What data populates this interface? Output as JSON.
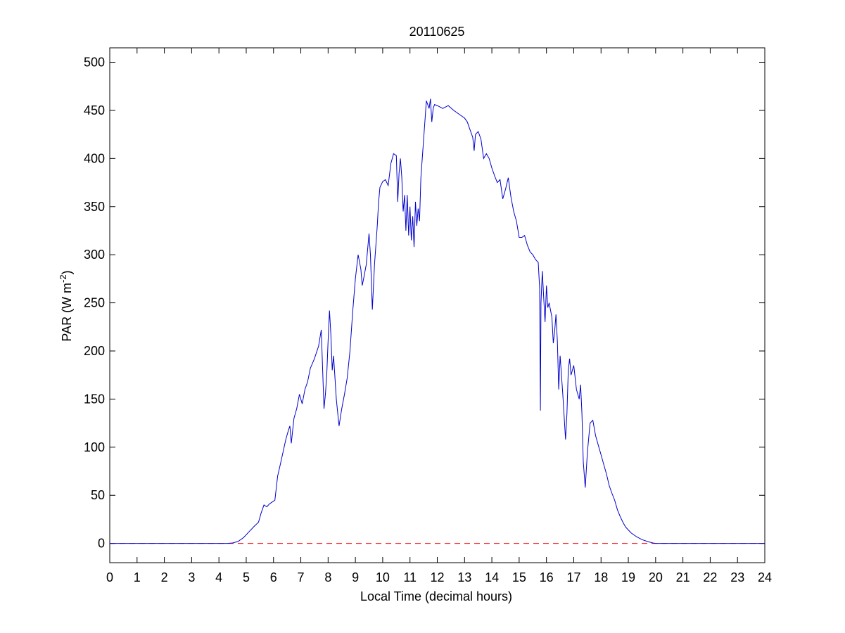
{
  "chart_data": {
    "type": "line",
    "title": "20110625",
    "xlabel": "Local Time (decimal hours)",
    "ylabel_main": "PAR (W m",
    "ylabel_sup": "-2",
    "ylabel_end": ")",
    "xlim": [
      0,
      24
    ],
    "ylim": [
      -20,
      515
    ],
    "x_ticks": [
      0,
      1,
      2,
      3,
      4,
      5,
      6,
      7,
      8,
      9,
      10,
      11,
      12,
      13,
      14,
      15,
      16,
      17,
      18,
      19,
      20,
      21,
      22,
      23,
      24
    ],
    "y_ticks": [
      0,
      50,
      100,
      150,
      200,
      250,
      300,
      350,
      400,
      450,
      500
    ],
    "grid": false,
    "colors": {
      "series": "#0000cc",
      "reference": "#ff0000"
    },
    "series": [
      {
        "points": [
          [
            0,
            0
          ],
          [
            4.3,
            0
          ],
          [
            4.5,
            0.5
          ],
          [
            4.7,
            2
          ],
          [
            4.9,
            6
          ],
          [
            5.1,
            12
          ],
          [
            5.3,
            18
          ],
          [
            5.45,
            22
          ],
          [
            5.55,
            32
          ],
          [
            5.65,
            40
          ],
          [
            5.75,
            38
          ],
          [
            5.85,
            41
          ],
          [
            5.95,
            43
          ],
          [
            6.05,
            45
          ],
          [
            6.15,
            70
          ],
          [
            6.25,
            82
          ],
          [
            6.35,
            95
          ],
          [
            6.45,
            108
          ],
          [
            6.55,
            118
          ],
          [
            6.6,
            122
          ],
          [
            6.65,
            104
          ],
          [
            6.75,
            130
          ],
          [
            6.85,
            140
          ],
          [
            6.95,
            155
          ],
          [
            7.05,
            145
          ],
          [
            7.15,
            160
          ],
          [
            7.25,
            168
          ],
          [
            7.35,
            182
          ],
          [
            7.5,
            192
          ],
          [
            7.65,
            205
          ],
          [
            7.75,
            222
          ],
          [
            7.8,
            180
          ],
          [
            7.85,
            140
          ],
          [
            7.9,
            155
          ],
          [
            7.95,
            175
          ],
          [
            8.0,
            210
          ],
          [
            8.05,
            242
          ],
          [
            8.1,
            218
          ],
          [
            8.15,
            180
          ],
          [
            8.2,
            195
          ],
          [
            8.3,
            150
          ],
          [
            8.4,
            122
          ],
          [
            8.5,
            140
          ],
          [
            8.6,
            155
          ],
          [
            8.7,
            172
          ],
          [
            8.8,
            200
          ],
          [
            8.9,
            240
          ],
          [
            9.0,
            275
          ],
          [
            9.1,
            300
          ],
          [
            9.2,
            285
          ],
          [
            9.25,
            268
          ],
          [
            9.3,
            275
          ],
          [
            9.4,
            290
          ],
          [
            9.5,
            322
          ],
          [
            9.55,
            300
          ],
          [
            9.6,
            260
          ],
          [
            9.62,
            243
          ],
          [
            9.7,
            290
          ],
          [
            9.8,
            330
          ],
          [
            9.85,
            355
          ],
          [
            9.9,
            370
          ],
          [
            10.0,
            376
          ],
          [
            10.1,
            378
          ],
          [
            10.2,
            372
          ],
          [
            10.3,
            395
          ],
          [
            10.4,
            405
          ],
          [
            10.5,
            403
          ],
          [
            10.55,
            355
          ],
          [
            10.6,
            385
          ],
          [
            10.65,
            400
          ],
          [
            10.7,
            380
          ],
          [
            10.75,
            345
          ],
          [
            10.8,
            362
          ],
          [
            10.85,
            325
          ],
          [
            10.9,
            362
          ],
          [
            10.95,
            320
          ],
          [
            11.0,
            350
          ],
          [
            11.05,
            315
          ],
          [
            11.1,
            340
          ],
          [
            11.15,
            308
          ],
          [
            11.2,
            355
          ],
          [
            11.25,
            330
          ],
          [
            11.3,
            348
          ],
          [
            11.35,
            335
          ],
          [
            11.4,
            380
          ],
          [
            11.5,
            420
          ],
          [
            11.6,
            460
          ],
          [
            11.7,
            452
          ],
          [
            11.75,
            462
          ],
          [
            11.8,
            438
          ],
          [
            11.85,
            452
          ],
          [
            11.9,
            456
          ],
          [
            12.0,
            455
          ],
          [
            12.2,
            452
          ],
          [
            12.4,
            455
          ],
          [
            12.6,
            450
          ],
          [
            12.8,
            446
          ],
          [
            13.0,
            442
          ],
          [
            13.1,
            438
          ],
          [
            13.2,
            430
          ],
          [
            13.3,
            422
          ],
          [
            13.35,
            408
          ],
          [
            13.4,
            425
          ],
          [
            13.5,
            428
          ],
          [
            13.6,
            420
          ],
          [
            13.7,
            400
          ],
          [
            13.8,
            405
          ],
          [
            13.9,
            400
          ],
          [
            14.0,
            390
          ],
          [
            14.1,
            382
          ],
          [
            14.2,
            375
          ],
          [
            14.3,
            378
          ],
          [
            14.4,
            358
          ],
          [
            14.5,
            368
          ],
          [
            14.6,
            380
          ],
          [
            14.7,
            360
          ],
          [
            14.8,
            345
          ],
          [
            14.9,
            335
          ],
          [
            15.0,
            318
          ],
          [
            15.1,
            318
          ],
          [
            15.2,
            320
          ],
          [
            15.3,
            310
          ],
          [
            15.4,
            303
          ],
          [
            15.5,
            300
          ],
          [
            15.6,
            295
          ],
          [
            15.7,
            292
          ],
          [
            15.75,
            265
          ],
          [
            15.78,
            138
          ],
          [
            15.8,
            250
          ],
          [
            15.85,
            283
          ],
          [
            15.9,
            255
          ],
          [
            15.95,
            230
          ],
          [
            16.0,
            268
          ],
          [
            16.05,
            245
          ],
          [
            16.1,
            250
          ],
          [
            16.2,
            235
          ],
          [
            16.25,
            208
          ],
          [
            16.3,
            220
          ],
          [
            16.35,
            238
          ],
          [
            16.4,
            210
          ],
          [
            16.45,
            160
          ],
          [
            16.5,
            195
          ],
          [
            16.6,
            155
          ],
          [
            16.7,
            108
          ],
          [
            16.75,
            135
          ],
          [
            16.8,
            180
          ],
          [
            16.85,
            192
          ],
          [
            16.9,
            175
          ],
          [
            17.0,
            185
          ],
          [
            17.1,
            160
          ],
          [
            17.2,
            150
          ],
          [
            17.25,
            165
          ],
          [
            17.3,
            135
          ],
          [
            17.35,
            85
          ],
          [
            17.42,
            58
          ],
          [
            17.5,
            95
          ],
          [
            17.6,
            125
          ],
          [
            17.7,
            128
          ],
          [
            17.8,
            112
          ],
          [
            17.9,
            102
          ],
          [
            18.0,
            92
          ],
          [
            18.1,
            82
          ],
          [
            18.2,
            72
          ],
          [
            18.3,
            60
          ],
          [
            18.4,
            52
          ],
          [
            18.5,
            45
          ],
          [
            18.6,
            35
          ],
          [
            18.7,
            28
          ],
          [
            18.8,
            22
          ],
          [
            18.9,
            17
          ],
          [
            19.0,
            14
          ],
          [
            19.1,
            11
          ],
          [
            19.3,
            7
          ],
          [
            19.5,
            4
          ],
          [
            19.7,
            2
          ],
          [
            19.9,
            0.5
          ],
          [
            20.0,
            0
          ],
          [
            24,
            0
          ]
        ]
      },
      {
        "points": [
          [
            0,
            0
          ],
          [
            24,
            0
          ]
        ],
        "style": "dashed"
      }
    ]
  }
}
